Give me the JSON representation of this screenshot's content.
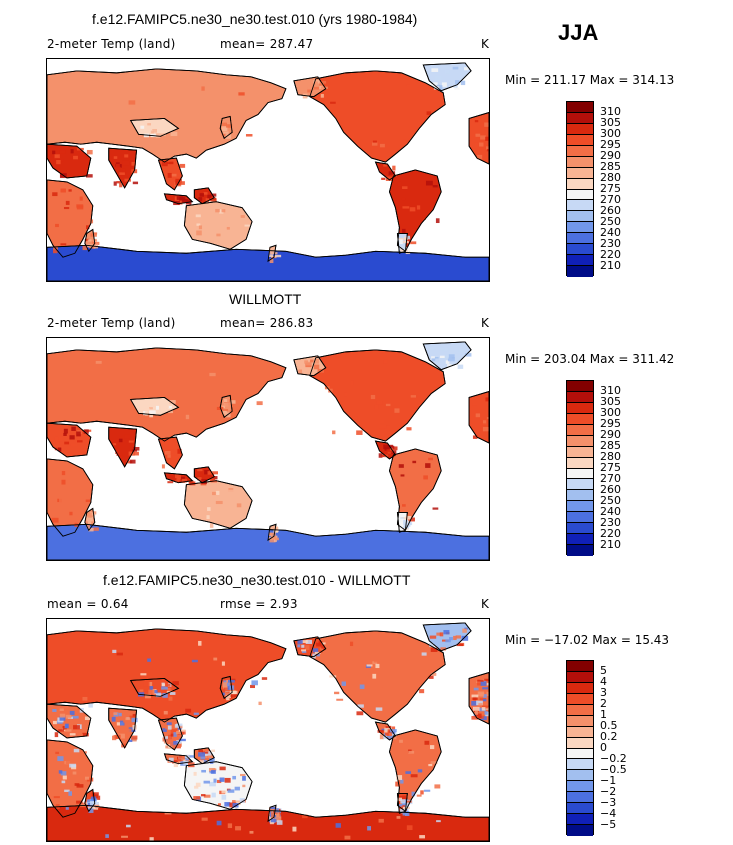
{
  "season": "JJA",
  "panels": [
    {
      "title": "f.e12.FAMIPC5.ne30_ne30.test.010 (yrs 1980-1984)",
      "left_label": "2-meter Temp (land)",
      "center_label": "mean= 287.47",
      "units": "K",
      "minmax": "Min = 211.17 Max = 314.13",
      "scale": "abs",
      "ticks": [
        "310",
        "305",
        "300",
        "295",
        "290",
        "285",
        "280",
        "275",
        "270",
        "260",
        "250",
        "240",
        "230",
        "220",
        "210"
      ]
    },
    {
      "title": "WILLMOTT",
      "left_label": "2-meter Temp (land)",
      "center_label": "mean= 286.83",
      "units": "K",
      "minmax": "Min = 203.04 Max = 311.42",
      "scale": "abs",
      "ticks": [
        "310",
        "305",
        "300",
        "295",
        "290",
        "285",
        "280",
        "275",
        "270",
        "260",
        "250",
        "240",
        "230",
        "220",
        "210"
      ]
    },
    {
      "title": "f.e12.FAMIPC5.ne30_ne30.test.010 - WILLMOTT",
      "left_label": "mean =    0.64",
      "center_label": "rmse =    2.93",
      "units": "K",
      "minmax": "Min = −17.02 Max =  15.43",
      "scale": "diff",
      "ticks": [
        "5",
        "4",
        "3",
        "2",
        "1",
        "0.5",
        "0.2",
        "0",
        "−0.2",
        "−0.5",
        "−1",
        "−2",
        "−3",
        "−4",
        "−5"
      ]
    }
  ],
  "palette": [
    "#820000",
    "#b30f0a",
    "#d9290f",
    "#ee4d28",
    "#f26e46",
    "#f4916b",
    "#f8b494",
    "#fbd7c1",
    "#f5f5f5",
    "#c7d9f5",
    "#a2bfef",
    "#7297ea",
    "#4c70e0",
    "#2a4bd0",
    "#1020b8",
    "#000c88"
  ],
  "land_colors": {
    "ocean": "#ffffff",
    "outline": "#000000"
  },
  "diff_noise_colors": [
    "#ee4d28",
    "#f4916b",
    "#f26e46",
    "#d9290f",
    "#fbd7c1",
    "#c7d9f5",
    "#7297ea",
    "#4c70e0"
  ]
}
